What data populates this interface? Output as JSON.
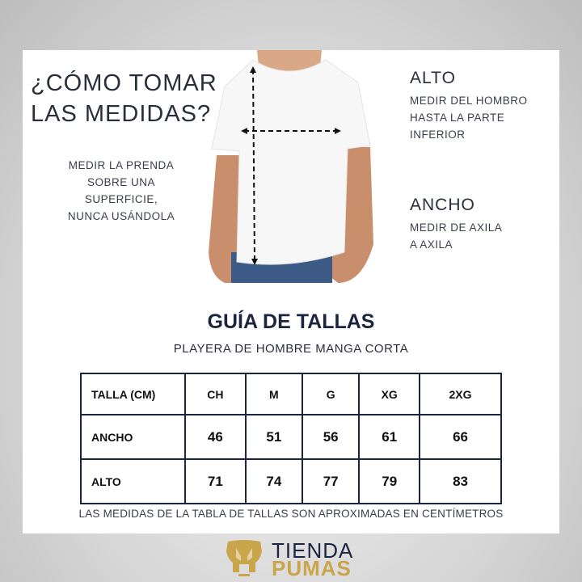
{
  "left": {
    "heading_line1": "¿CÓMO TOMAR",
    "heading_line2": "LAS MEDIDAS?",
    "instructions": [
      "MEDIR LA PRENDA",
      "SOBRE UNA",
      "SUPERFICIE,",
      "NUNCA USÁNDOLA"
    ]
  },
  "right": {
    "alto_label": "ALTO",
    "alto_desc": [
      "MEDIR DEL HOMBRO",
      "HASTA LA PARTE",
      "INFERIOR"
    ],
    "ancho_label": "ANCHO",
    "ancho_desc": [
      "MEDIR DE AXILA",
      "A AXILA"
    ]
  },
  "guide": {
    "title": "GUÍA DE TALLAS",
    "subtitle": "PLAYERA DE HOMBRE MANGA CORTA",
    "table": {
      "header": [
        "TALLA (CM)",
        "CH",
        "M",
        "G",
        "XG",
        "2XG"
      ],
      "rows": [
        [
          "ANCHO",
          "46",
          "51",
          "56",
          "61",
          "66"
        ],
        [
          "ALTO",
          "71",
          "74",
          "77",
          "79",
          "83"
        ]
      ]
    },
    "note": "LAS MEDIDAS DE LA TABLA DE TALLAS SON APROXIMADAS EN CENTÍMETROS"
  },
  "brand": {
    "line1": "TIENDA",
    "line2": "PUMAS",
    "navy": "#1c2540",
    "gold": "#c9a54c"
  }
}
